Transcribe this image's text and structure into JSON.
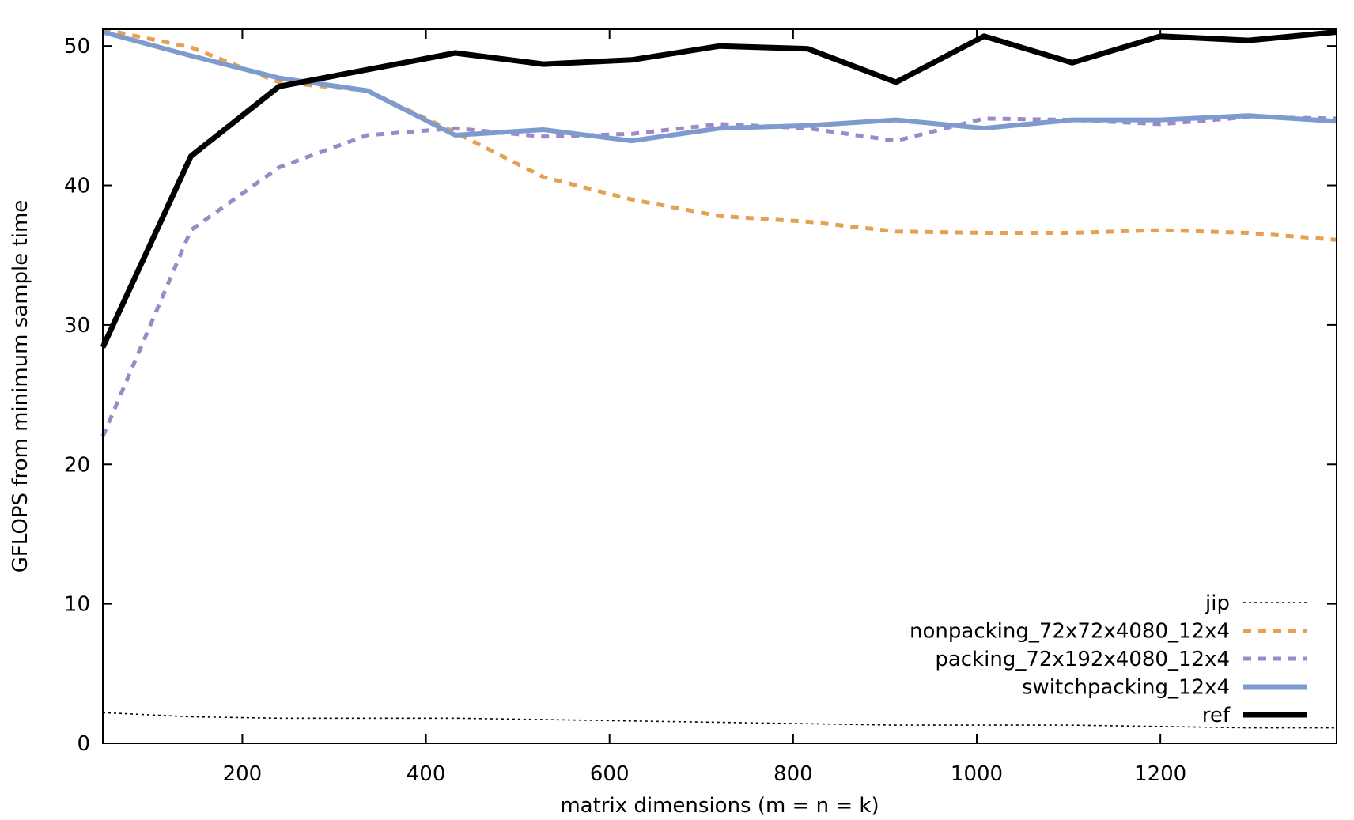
{
  "chart_data": {
    "type": "line",
    "title": "",
    "xlabel": "matrix dimensions (m = n = k)",
    "ylabel": "GFLOPS from minimum sample time",
    "xlim": [
      48,
      1392
    ],
    "ylim": [
      0,
      51.2
    ],
    "xticks": [
      200,
      400,
      600,
      800,
      1000,
      1200
    ],
    "yticks": [
      0,
      10,
      20,
      30,
      40,
      50
    ],
    "grid": false,
    "legend_position": "bottom-right",
    "x": [
      48,
      144,
      240,
      336,
      432,
      528,
      624,
      720,
      816,
      912,
      1008,
      1104,
      1200,
      1296,
      1392
    ],
    "series": [
      {
        "name": "jip",
        "color": "#000000",
        "style": "dotted",
        "values": [
          2.2,
          1.9,
          1.8,
          1.8,
          1.8,
          1.7,
          1.6,
          1.5,
          1.4,
          1.3,
          1.3,
          1.3,
          1.2,
          1.1,
          1.1
        ]
      },
      {
        "name": "nonpacking_72x72x4080_12x4",
        "color": "#e5a052",
        "style": "dashed",
        "values": [
          51.2,
          49.9,
          47.4,
          46.8,
          43.8,
          40.6,
          39.0,
          37.8,
          37.4,
          36.7,
          36.6,
          36.6,
          36.8,
          36.6,
          36.1
        ]
      },
      {
        "name": "packing_72x192x4080_12x4",
        "color": "#9e88c7",
        "style": "dashed",
        "values": [
          22.0,
          36.8,
          41.3,
          43.6,
          44.1,
          43.5,
          43.7,
          44.4,
          44.1,
          43.2,
          44.8,
          44.7,
          44.4,
          44.9,
          44.8
        ]
      },
      {
        "name": "switchpacking_12x4",
        "color": "#7d9bcf",
        "style": "solid",
        "values": [
          51.0,
          49.3,
          47.7,
          46.8,
          43.6,
          44.0,
          43.2,
          44.1,
          44.3,
          44.7,
          44.1,
          44.7,
          44.7,
          45.0,
          44.6
        ]
      },
      {
        "name": "ref",
        "color": "#000000",
        "style": "solid-thick",
        "values": [
          28.4,
          42.1,
          47.1,
          48.3,
          49.5,
          48.7,
          49.0,
          50.0,
          49.8,
          47.4,
          50.7,
          48.8,
          50.7,
          50.4,
          51.0
        ]
      }
    ]
  }
}
